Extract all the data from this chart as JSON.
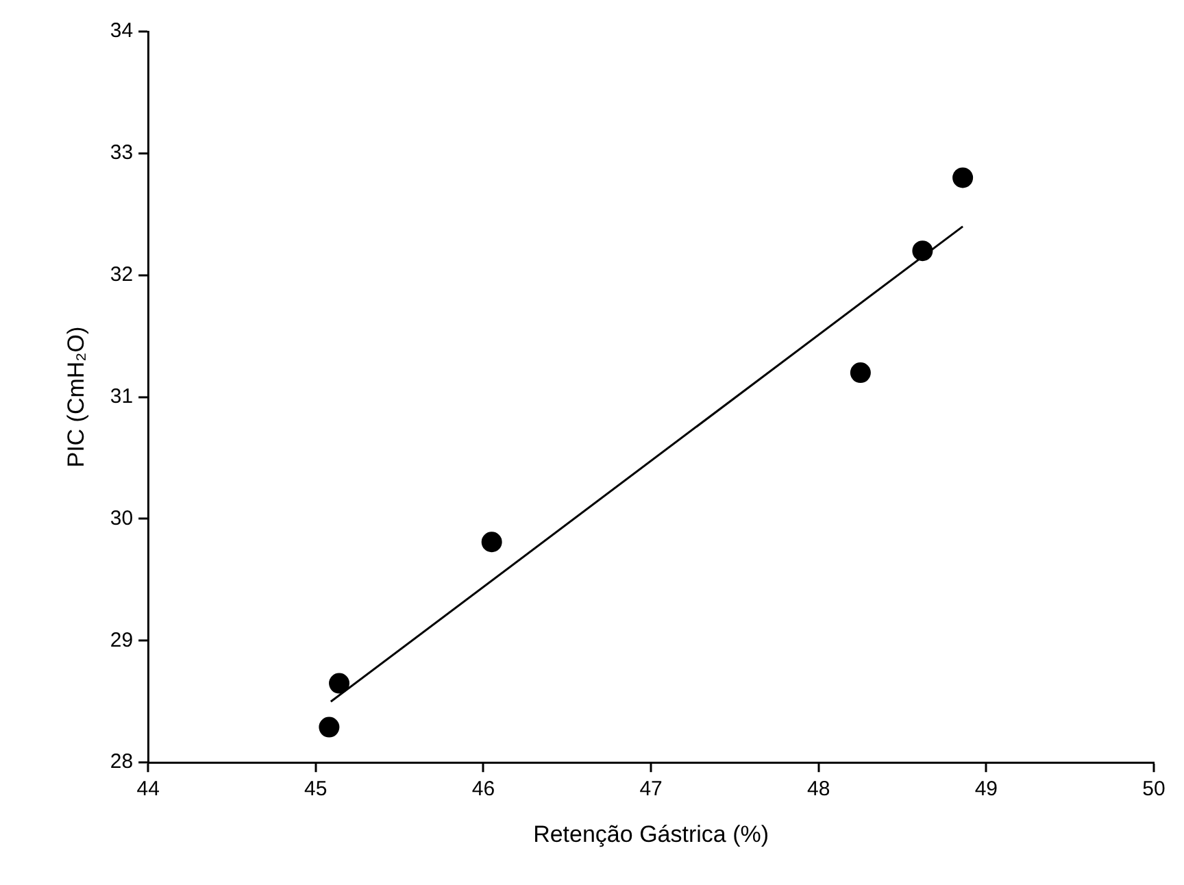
{
  "chart_data": {
    "type": "scatter",
    "xlabel": "Retenção Gástrica (%)",
    "ylabel": "PIC (CmH₂O)",
    "xlim": [
      44,
      50
    ],
    "xticks": [
      44,
      45,
      46,
      47,
      48,
      49,
      50
    ],
    "ylim": [
      28,
      34
    ],
    "yticks": [
      28,
      29,
      30,
      31,
      32,
      33,
      34
    ],
    "grid": false,
    "legend": false,
    "marker": "circle",
    "series": [
      {
        "color": "#000000",
        "x": [
          45.08,
          45.14,
          46.05,
          48.25,
          48.62,
          48.86
        ],
        "values": [
          28.29,
          28.65,
          29.81,
          31.2,
          32.2,
          32.8
        ]
      },
      {
        "type": "line",
        "color": "#000000",
        "marker": "none",
        "x": [
          45.09,
          48.86
        ],
        "values": [
          28.5,
          32.4
        ]
      }
    ]
  }
}
